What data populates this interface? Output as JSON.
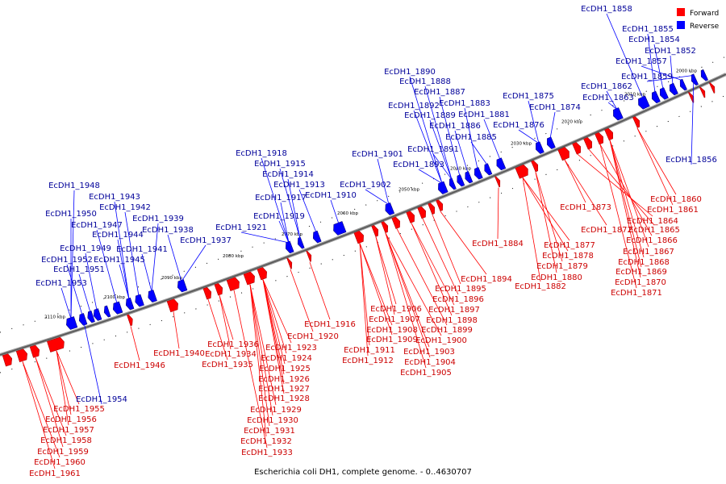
{
  "caption": "Escherichia coli DH1, complete genome. - 0..4630707",
  "legend": [
    {
      "label": "Forward",
      "color": "#ff0000"
    },
    {
      "label": "Reverse",
      "color": "#0000ff"
    }
  ],
  "colors": {
    "forward": "#ff0000",
    "reverse": "#0000ff",
    "forward_label": "#cc0000",
    "reverse_label": "#000099"
  },
  "ticks": [
    "2000 kbp",
    "2010 kbp",
    "2020 kbp",
    "2030 kbp",
    "2040 kbp",
    "2050 kbp",
    "2060 kbp",
    "2070 kbp",
    "2080 kbp",
    "2090 kbp",
    "2100 kbp",
    "2110 kbp"
  ],
  "reverse_labels": [
    "EcDH1_1858",
    "EcDH1_1855",
    "EcDH1_1854",
    "EcDH1_1852",
    "EcDH1_1857",
    "EcDH1_1859",
    "EcDH1_1862",
    "EcDH1_1863",
    "EcDH1_1875",
    "EcDH1_1874",
    "EcDH1_1876",
    "EcDH1_1856",
    "EcDH1_1890",
    "EcDH1_1888",
    "EcDH1_1887",
    "EcDH1_1892",
    "EcDH1_1883",
    "EcDH1_1889",
    "EcDH1_1881",
    "EcDH1_1886",
    "EcDH1_1885",
    "EcDH1_1891",
    "EcDH1_1893",
    "EcDH1_1901",
    "EcDH1_1902",
    "EcDH1_1918",
    "EcDH1_1915",
    "EcDH1_1914",
    "EcDH1_1913",
    "EcDH1_1917",
    "EcDH1_1910",
    "EcDH1_1919",
    "EcDH1_1921",
    "EcDH1_1948",
    "EcDH1_1943",
    "EcDH1_1942",
    "EcDH1_1950",
    "EcDH1_1947",
    "EcDH1_1939",
    "EcDH1_1944",
    "EcDH1_1938",
    "EcDH1_1949",
    "EcDH1_1941",
    "EcDH1_1937",
    "EcDH1_1952",
    "EcDH1_1945",
    "EcDH1_1951",
    "EcDH1_1953",
    "EcDH1_1954"
  ],
  "forward_labels": [
    "EcDH1_1860",
    "EcDH1_1861",
    "EcDH1_1873",
    "EcDH1_1864",
    "EcDH1_1872",
    "EcDH1_1865",
    "EcDH1_1866",
    "EcDH1_1867",
    "EcDH1_1868",
    "EcDH1_1869",
    "EcDH1_1870",
    "EcDH1_1871",
    "EcDH1_1884",
    "EcDH1_1877",
    "EcDH1_1878",
    "EcDH1_1879",
    "EcDH1_1880",
    "EcDH1_1882",
    "EcDH1_1894",
    "EcDH1_1895",
    "EcDH1_1896",
    "EcDH1_1897",
    "EcDH1_1898",
    "EcDH1_1899",
    "EcDH1_1900",
    "EcDH1_1906",
    "EcDH1_1907",
    "EcDH1_1908",
    "EcDH1_1909",
    "EcDH1_1903",
    "EcDH1_1904",
    "EcDH1_1905",
    "EcDH1_1911",
    "EcDH1_1912",
    "EcDH1_1916",
    "EcDH1_1920",
    "EcDH1_1923",
    "EcDH1_1924",
    "EcDH1_1925",
    "EcDH1_1926",
    "EcDH1_1927",
    "EcDH1_1928",
    "EcDH1_1929",
    "EcDH1_1930",
    "EcDH1_1931",
    "EcDH1_1932",
    "EcDH1_1933",
    "EcDH1_1936",
    "EcDH1_1934",
    "EcDH1_1935",
    "EcDH1_1940",
    "EcDH1_1946",
    "EcDH1_1955",
    "EcDH1_1956",
    "EcDH1_1957",
    "EcDH1_1958",
    "EcDH1_1959",
    "EcDH1_1960",
    "EcDH1_1961"
  ]
}
